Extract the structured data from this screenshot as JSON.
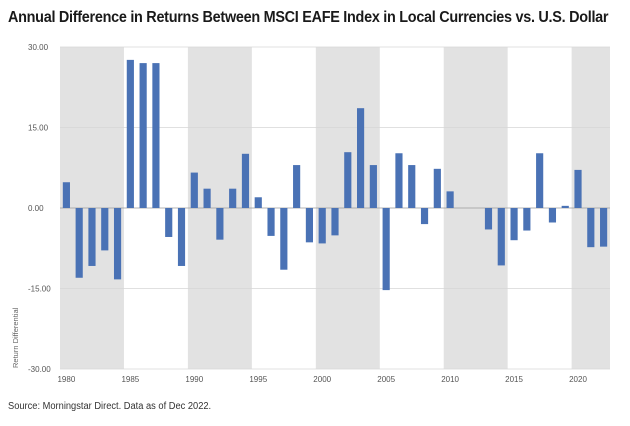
{
  "title": "Annual Difference in Returns Between MSCI EAFE Index in Local Currencies vs. U.S. Dollar",
  "source": "Source: Morningstar Direct. Data as of Dec 2022.",
  "chart_data": {
    "type": "bar",
    "title": "Annual Difference in Returns Between MSCI EAFE Index in Local Currencies vs. U.S. Dollar",
    "ylabel": "Return Differential",
    "xlabel": "",
    "ylim": [
      -30,
      30
    ],
    "yticks": [
      30,
      15,
      0,
      -15,
      -30
    ],
    "ytick_labels": [
      "30.00",
      "15.00",
      "0.00",
      "-15.00",
      "-30.00"
    ],
    "xticks": [
      1980,
      1985,
      1990,
      1995,
      2000,
      2005,
      2010,
      2015,
      2020
    ],
    "xtick_labels": [
      "1980",
      "1985",
      "1990",
      "1995",
      "2000",
      "2005",
      "2010",
      "2015",
      "2020"
    ],
    "x": [
      1980,
      1981,
      1982,
      1983,
      1984,
      1985,
      1986,
      1987,
      1988,
      1989,
      1990,
      1991,
      1992,
      1993,
      1994,
      1995,
      1996,
      1997,
      1998,
      1999,
      2000,
      2001,
      2002,
      2003,
      2004,
      2005,
      2006,
      2007,
      2008,
      2009,
      2010,
      2011,
      2012,
      2013,
      2014,
      2015,
      2016,
      2017,
      2018,
      2019,
      2020,
      2021,
      2022
    ],
    "values": [
      4.8,
      -13.0,
      -10.8,
      -7.9,
      -13.3,
      27.6,
      27.0,
      27.0,
      -5.4,
      -10.8,
      6.6,
      3.6,
      -5.9,
      3.6,
      10.1,
      2.0,
      -5.2,
      -11.5,
      8.0,
      -6.4,
      -6.6,
      -5.1,
      10.4,
      18.6,
      8.0,
      -15.3,
      10.2,
      8.0,
      -3.0,
      7.3,
      3.1,
      0,
      0,
      -4.0,
      -10.7,
      -6.0,
      -4.2,
      10.2,
      -2.7,
      0.4,
      7.1,
      -7.3,
      -7.2
    ],
    "shaded_year_ranges": [
      [
        1979.5,
        1984.5
      ],
      [
        1989.5,
        1994.5
      ],
      [
        1999.5,
        2004.5
      ],
      [
        2009.5,
        2014.5
      ],
      [
        2019.5,
        2022.5
      ]
    ],
    "colors": {
      "bar": "#4a72b5",
      "shade": "#e2e2e2",
      "grid": "#d6d6d6",
      "zero_line": "#9a9a9a"
    },
    "grid": true
  }
}
